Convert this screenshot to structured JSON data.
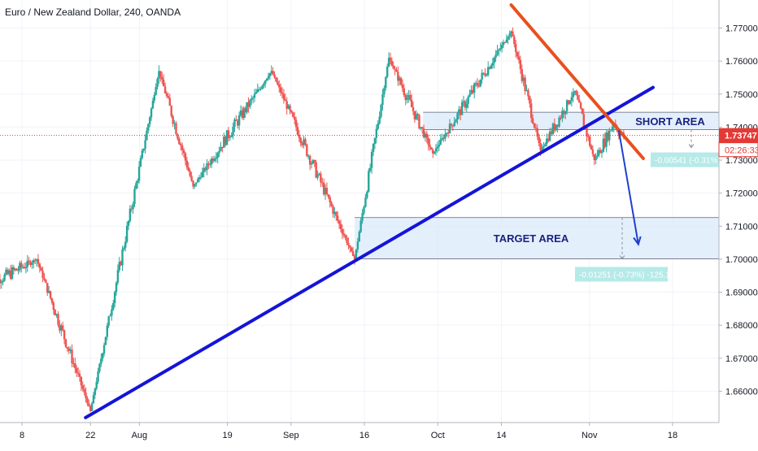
{
  "header": {
    "title": "Euro / New Zealand Dollar, 240, OANDA"
  },
  "colors": {
    "up": "#26a69a",
    "down": "#ef5350",
    "trendline_blue": "#1414d8",
    "trendline_red": "#e8501e",
    "zone_fill": "#dbe9fb",
    "price_line": "#e53935",
    "axis_text": "#131722",
    "grid": "#f0f3fa"
  },
  "chart_data": {
    "type": "candlestick",
    "x_ticks": [
      "8",
      "22",
      "Aug",
      "19",
      "Sep",
      "16",
      "Oct",
      "14",
      "Nov",
      "18"
    ],
    "y_ticks": [
      "1.77000",
      "1.76000",
      "1.75000",
      "1.74000",
      "1.73000",
      "1.72000",
      "1.71000",
      "1.70000",
      "1.69000",
      "1.68000",
      "1.67000",
      "1.66000"
    ],
    "ylim": [
      1.6505,
      1.7785
    ],
    "current_price": {
      "label": "1.73747",
      "countdown": "02:26:33",
      "value": 1.73747
    },
    "key_points": [
      {
        "date": "Jul 1",
        "price": 1.692
      },
      {
        "date": "Jul 11",
        "price": 1.7
      },
      {
        "date": "Jul 22",
        "price": 1.654
      },
      {
        "date": "Aug 5",
        "price": 1.757
      },
      {
        "date": "Aug 12",
        "price": 1.722
      },
      {
        "date": "Aug 28",
        "price": 1.757
      },
      {
        "date": "Sep 14",
        "price": 1.7
      },
      {
        "date": "Sep 21",
        "price": 1.761
      },
      {
        "date": "Sep 30",
        "price": 1.732
      },
      {
        "date": "Oct 16",
        "price": 1.769
      },
      {
        "date": "Oct 22",
        "price": 1.733
      },
      {
        "date": "Oct 29",
        "price": 1.751
      },
      {
        "date": "Nov 2",
        "price": 1.73
      },
      {
        "date": "Nov 6",
        "price": 1.741
      },
      {
        "date": "Nov 8",
        "price": 1.737
      }
    ],
    "zones": [
      {
        "label": "SHORT AREA",
        "top": 1.7445,
        "bottom": 1.7392
      },
      {
        "label": "TARGET AREA",
        "top": 1.7126,
        "bottom": 1.7001
      }
    ],
    "measurements": [
      {
        "label": "-0.00541 (-0.31%) -",
        "from": 1.7392,
        "to": 1.7338
      },
      {
        "label": "-0.01251 (-0.73%) -125.1",
        "from": 1.7126,
        "to": 1.7001
      }
    ],
    "trendlines": [
      {
        "name": "support",
        "color": "blue",
        "from": {
          "date": "Jul 21",
          "price": 1.652
        },
        "to": {
          "date": "Nov 14",
          "price": 1.752
        }
      },
      {
        "name": "resistance",
        "color": "red",
        "from": {
          "date": "Oct 16",
          "price": 1.777
        },
        "to": {
          "date": "Nov 12",
          "price": 1.7305
        }
      }
    ],
    "projection_arrow": {
      "from": {
        "date": "Nov 7",
        "price": 1.739
      },
      "to": {
        "date": "Nov 11",
        "price": 1.7045
      }
    }
  }
}
